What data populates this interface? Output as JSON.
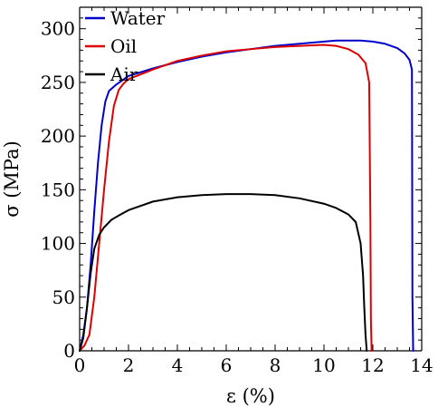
{
  "chart_data": {
    "type": "line",
    "title": "",
    "xlabel": "ε (%)",
    "ylabel": "σ (MPa)",
    "xlim": [
      0,
      14
    ],
    "ylim": [
      0,
      320
    ],
    "x_ticks": [
      0,
      2,
      4,
      6,
      8,
      10,
      12,
      14
    ],
    "y_ticks": [
      0,
      50,
      100,
      150,
      200,
      250,
      300
    ],
    "x_tick_labels": [
      "0",
      "2",
      "4",
      "6",
      "8",
      "10",
      "12",
      "14"
    ],
    "y_tick_labels": [
      "0",
      "50",
      "100",
      "150",
      "200",
      "250",
      "300"
    ],
    "grid": false,
    "legend_position": "top-left",
    "series": [
      {
        "name": "Water",
        "color": "#0000cc",
        "x": [
          0,
          0.15,
          0.3,
          0.45,
          0.6,
          0.75,
          0.9,
          1.05,
          1.2,
          1.5,
          2,
          3,
          4,
          5,
          6,
          7,
          8,
          9,
          10,
          10.5,
          11,
          11.5,
          12,
          12.5,
          13,
          13.3,
          13.5,
          13.6,
          13.62,
          13.65
        ],
        "y": [
          0,
          15,
          40,
          80,
          130,
          175,
          210,
          232,
          242,
          248,
          256,
          263,
          269,
          274,
          278,
          281,
          284,
          286,
          288,
          289,
          289,
          289,
          288,
          286,
          282,
          277,
          271,
          262,
          50,
          0
        ]
      },
      {
        "name": "Oil",
        "color": "#dd0000",
        "x": [
          0,
          0.2,
          0.4,
          0.6,
          0.8,
          1.0,
          1.2,
          1.4,
          1.6,
          1.8,
          2,
          3,
          4,
          5,
          6,
          7,
          8,
          9,
          10,
          10.5,
          11,
          11.4,
          11.7,
          11.85,
          11.9,
          11.92,
          11.95
        ],
        "y": [
          0,
          5,
          15,
          50,
          100,
          150,
          195,
          228,
          243,
          249,
          253,
          262,
          270,
          275,
          279,
          281,
          283,
          284,
          285,
          284,
          281,
          276,
          268,
          250,
          120,
          30,
          0
        ]
      },
      {
        "name": "Air",
        "color": "#000000",
        "x": [
          0,
          0.15,
          0.3,
          0.45,
          0.6,
          0.8,
          1.0,
          1.3,
          1.6,
          2,
          3,
          4,
          5,
          6,
          7,
          8,
          9,
          10,
          10.5,
          11,
          11.3,
          11.5,
          11.6,
          11.65,
          11.7,
          11.75
        ],
        "y": [
          0,
          12,
          40,
          72,
          95,
          108,
          115,
          122,
          126,
          131,
          139,
          143,
          145,
          146,
          146,
          145,
          142,
          137,
          133,
          127,
          120,
          100,
          70,
          40,
          15,
          0
        ]
      }
    ]
  }
}
